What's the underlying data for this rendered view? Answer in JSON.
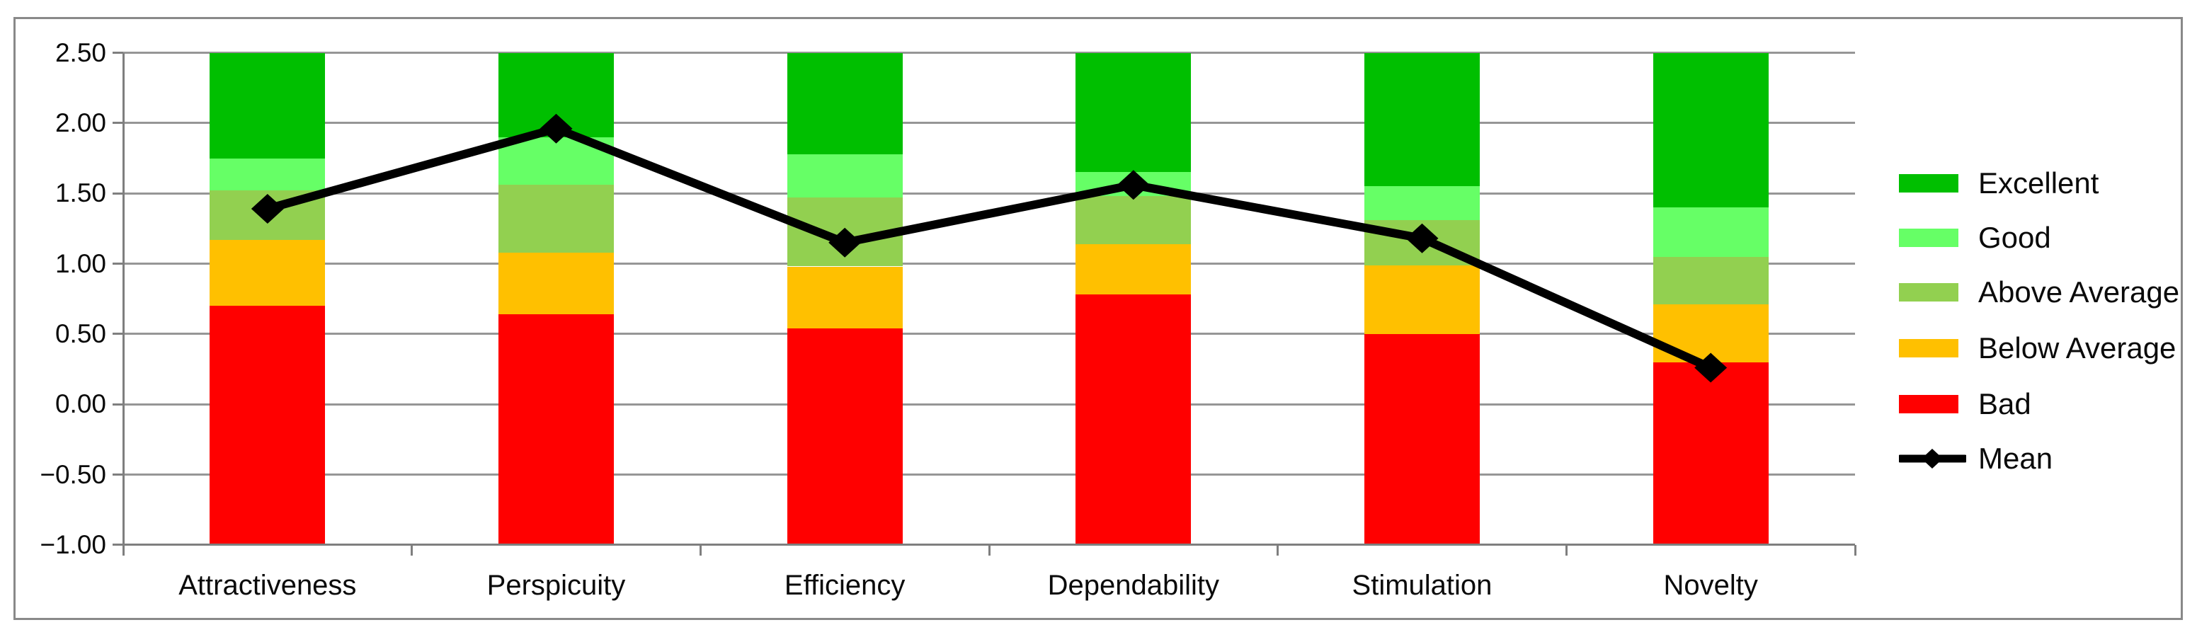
{
  "chart_data": {
    "type": "bar",
    "subtype": "stacked-benchmark-bands-with-mean-line",
    "title": "",
    "categories": [
      "Attractiveness",
      "Perspicuity",
      "Efficiency",
      "Dependability",
      "Stimulation",
      "Novelty"
    ],
    "stack_baseline": -1.0,
    "stack_top": 2.5,
    "series": [
      {
        "name": "Bad",
        "color": "#FF0000",
        "tops": [
          0.7,
          0.64,
          0.54,
          0.78,
          0.5,
          0.3
        ]
      },
      {
        "name": "Below Average",
        "color": "#FFC000",
        "tops": [
          1.17,
          1.08,
          0.98,
          1.14,
          0.99,
          0.71
        ]
      },
      {
        "name": "Above Average",
        "color": "#92D050",
        "tops": [
          1.52,
          1.56,
          1.47,
          1.48,
          1.31,
          1.05
        ]
      },
      {
        "name": "Good",
        "color": "#66FF66",
        "tops": [
          1.75,
          1.9,
          1.78,
          1.65,
          1.55,
          1.4
        ]
      },
      {
        "name": "Excellent",
        "color": "#00BF00",
        "tops": [
          2.5,
          2.5,
          2.5,
          2.5,
          2.5,
          2.5
        ]
      }
    ],
    "line": {
      "name": "Mean",
      "color": "#000000",
      "values": [
        1.39,
        1.96,
        1.15,
        1.56,
        1.18,
        0.26
      ]
    },
    "ylim": [
      -1.0,
      2.5
    ],
    "ytick_step": 0.5,
    "ytick_labels": [
      "2.50",
      "2.00",
      "1.50",
      "1.00",
      "0.50",
      "0.00",
      "−0.50",
      "−1.00"
    ],
    "grid": true,
    "legend": {
      "position": "right",
      "items": [
        {
          "label": "Excellent",
          "marker": "swatch",
          "color": "#00BF00"
        },
        {
          "label": "Good",
          "marker": "swatch",
          "color": "#66FF66"
        },
        {
          "label": "Above Average",
          "marker": "swatch",
          "color": "#92D050"
        },
        {
          "label": "Below Average",
          "marker": "swatch",
          "color": "#FFC000"
        },
        {
          "label": "Bad",
          "marker": "swatch",
          "color": "#FF0000"
        },
        {
          "label": "Mean",
          "marker": "line-diamond",
          "color": "#000000"
        }
      ]
    },
    "colors": {
      "background": "#FFFFFF",
      "gridline": "#969696",
      "axis": "#7F7F7F",
      "frame": "#898989",
      "text": "#0A0A0A"
    }
  }
}
